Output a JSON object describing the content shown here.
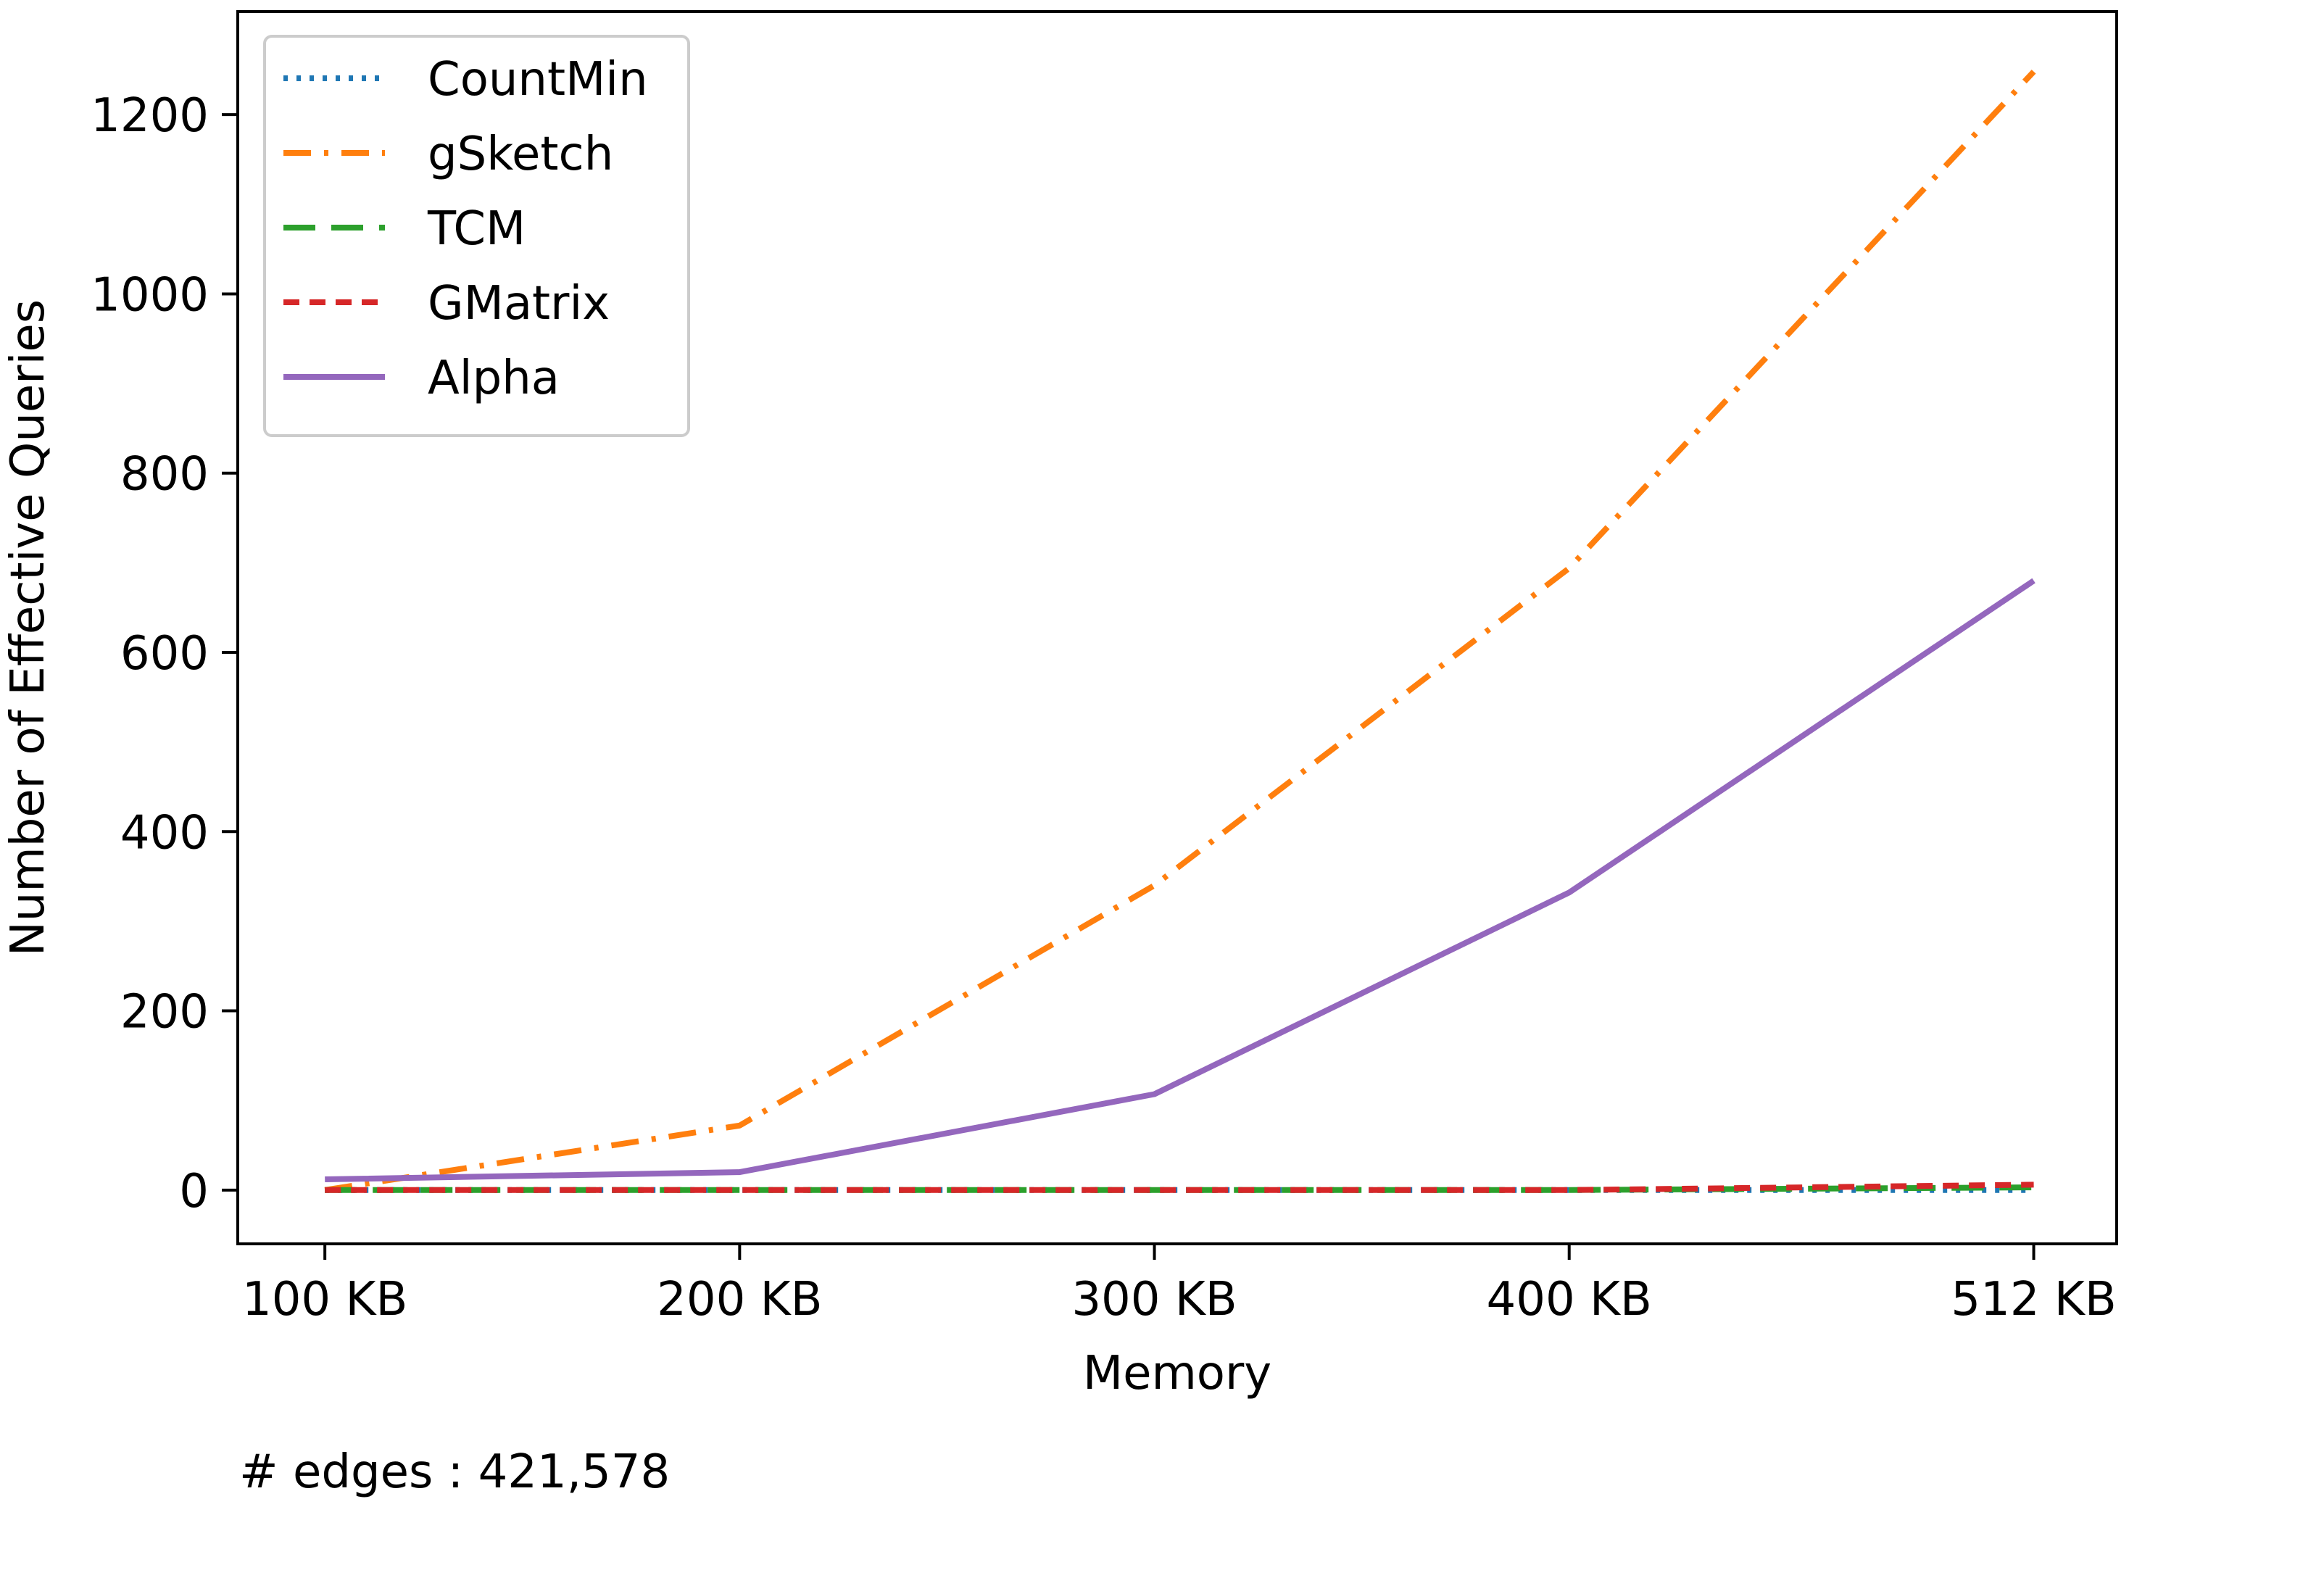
{
  "chart_data": {
    "type": "line",
    "xlabel": "Memory",
    "ylabel": "Number of Effective Queries",
    "categories": [
      "100 KB",
      "200 KB",
      "300 KB",
      "400 KB",
      "512 KB"
    ],
    "x": [
      100,
      200,
      300,
      400,
      512
    ],
    "xlim": [
      79,
      532
    ],
    "ylim": [
      -60,
      1315
    ],
    "yticks": [
      0,
      200,
      400,
      600,
      800,
      1000,
      1200
    ],
    "grid": false,
    "legend_position": "upper-left",
    "series": [
      {
        "name": "CountMin",
        "values": [
          0,
          0,
          0,
          0,
          0
        ],
        "color": "#1f77b4",
        "style": "dotted"
      },
      {
        "name": "gSketch",
        "values": [
          0,
          72,
          340,
          694,
          1248
        ],
        "color": "#ff7f0e",
        "style": "dashdot"
      },
      {
        "name": "TCM",
        "values": [
          0,
          0,
          0,
          0,
          3
        ],
        "color": "#2ca02c",
        "style": "dashed"
      },
      {
        "name": "GMatrix",
        "values": [
          0,
          0,
          0,
          0,
          6
        ],
        "color": "#d62728",
        "style": "densely-dashed"
      },
      {
        "name": "Alpha",
        "values": [
          12,
          20,
          107,
          332,
          680
        ],
        "color": "#9467bd",
        "style": "solid"
      }
    ]
  },
  "footnote": "# edges : 421,578"
}
